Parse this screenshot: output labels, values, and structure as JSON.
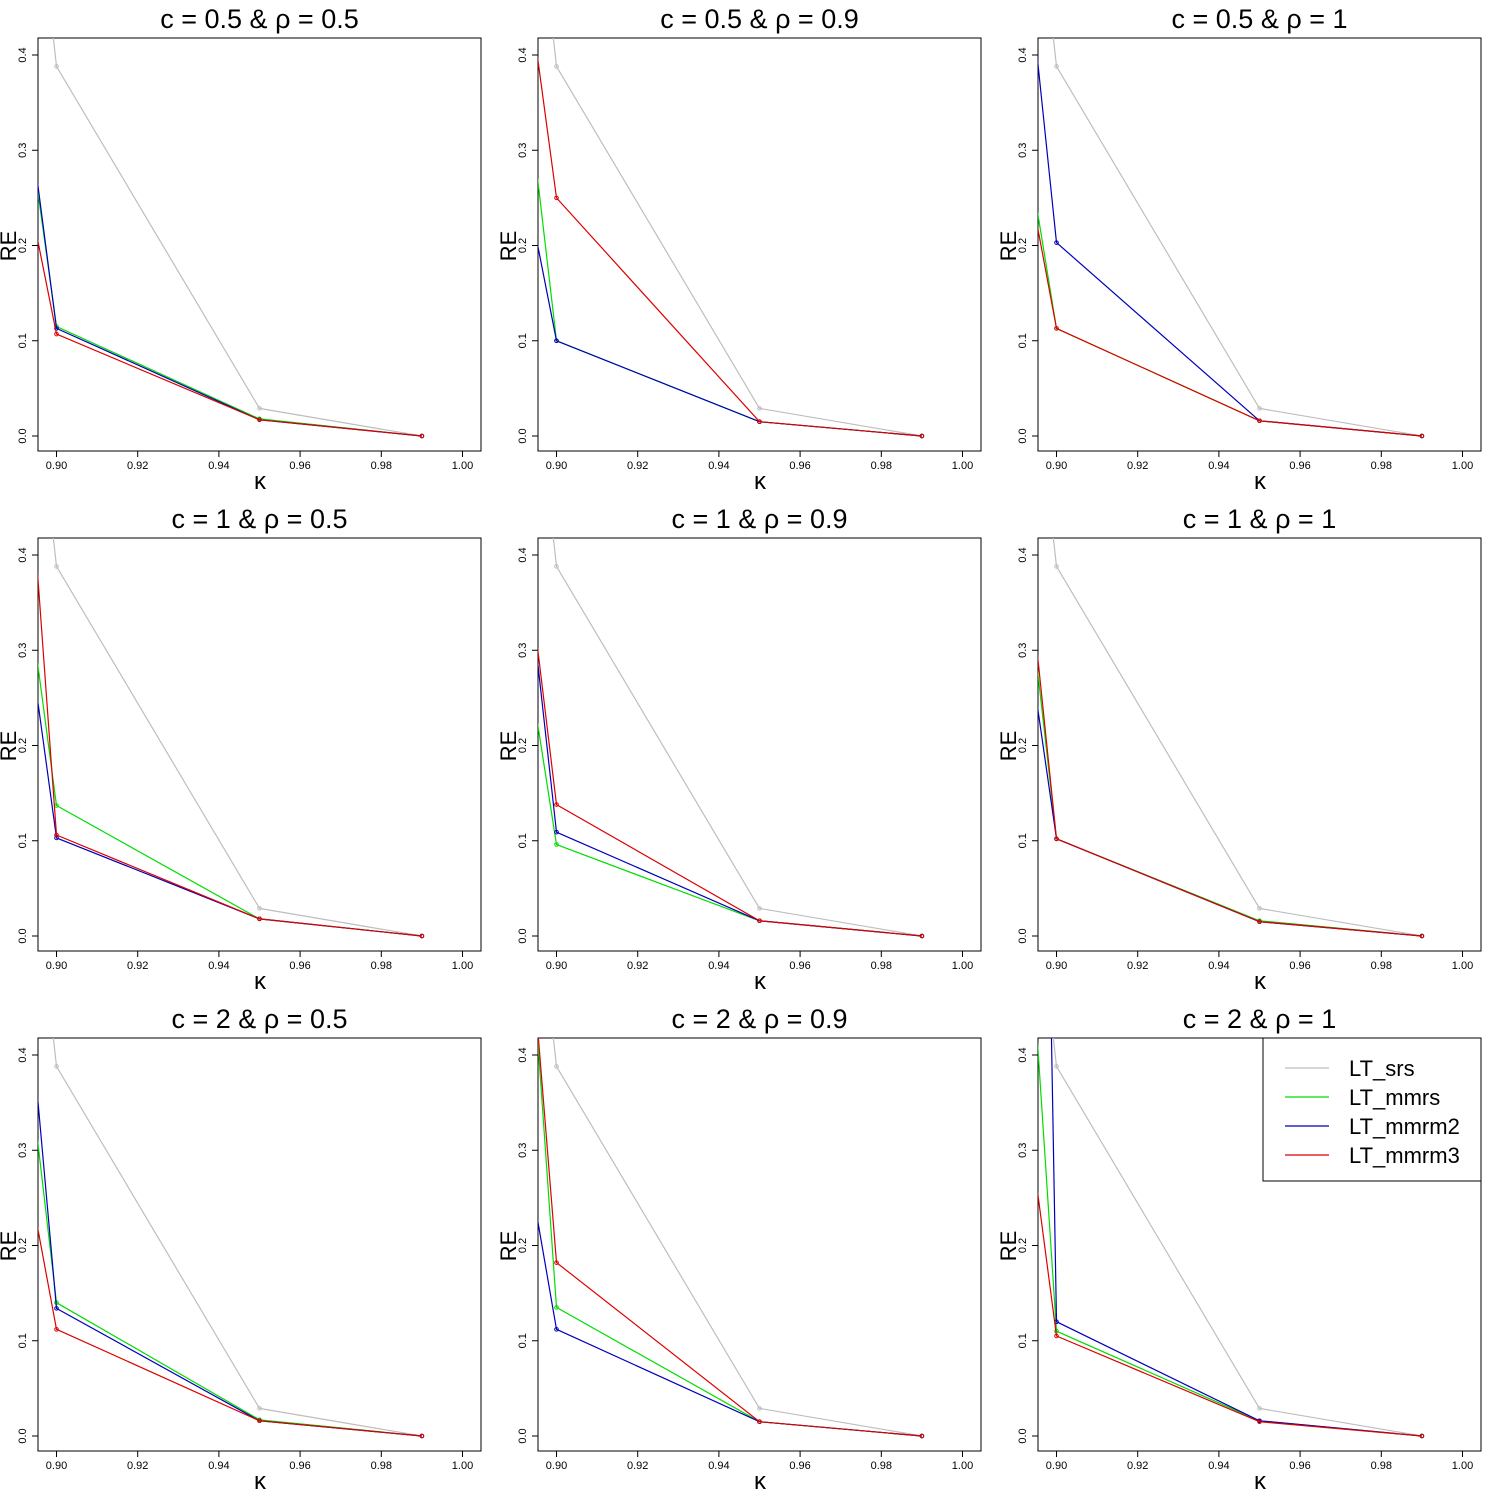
{
  "figure": {
    "legend": {
      "placement": "top-right of last panel",
      "entries": [
        {
          "label": "LT_srs",
          "color": "#bebebe"
        },
        {
          "label": "LT_mmrs",
          "color": "#00dd00"
        },
        {
          "label": "LT_mmrm2",
          "color": "#0000bb"
        },
        {
          "label": "LT_mmrm3",
          "color": "#dd0000"
        }
      ]
    }
  },
  "chart_data": [
    {
      "type": "line",
      "title": "c = 0.5 & ρ = 0.5",
      "xlabel": "κ",
      "ylabel": "RE",
      "xlim": [
        0.895,
        1.0
      ],
      "ylim": [
        -0.01,
        0.42
      ],
      "x_ticks": [
        "0.90",
        "0.92",
        "0.94",
        "0.96",
        "0.98",
        "1.00"
      ],
      "y_ticks": [
        "0.0",
        "0.1",
        "0.2",
        "0.3",
        "0.4"
      ],
      "series": [
        {
          "name": "LT_srs",
          "points": [
            [
              0.894,
              0.62
            ],
            [
              0.9,
              0.388
            ],
            [
              0.95,
              0.029
            ],
            [
              0.99,
              0.0
            ]
          ]
        },
        {
          "name": "LT_mmrs",
          "points": [
            [
              0.894,
              0.3
            ],
            [
              0.9,
              0.115
            ],
            [
              0.95,
              0.018
            ],
            [
              0.99,
              0.0
            ]
          ]
        },
        {
          "name": "LT_mmrm2",
          "points": [
            [
              0.894,
              0.31
            ],
            [
              0.9,
              0.113
            ],
            [
              0.95,
              0.017
            ],
            [
              0.99,
              0.0
            ]
          ]
        },
        {
          "name": "LT_mmrm3",
          "points": [
            [
              0.894,
              0.235
            ],
            [
              0.9,
              0.107
            ],
            [
              0.95,
              0.017
            ],
            [
              0.99,
              0.0
            ]
          ]
        }
      ]
    },
    {
      "type": "line",
      "title": "c = 0.5 & ρ = 0.9",
      "xlabel": "κ",
      "ylabel": "RE",
      "xlim": [
        0.895,
        1.0
      ],
      "ylim": [
        -0.01,
        0.42
      ],
      "x_ticks": [
        "0.90",
        "0.92",
        "0.94",
        "0.96",
        "0.98",
        "1.00"
      ],
      "y_ticks": [
        "0.0",
        "0.1",
        "0.2",
        "0.3",
        "0.4"
      ],
      "series": [
        {
          "name": "LT_srs",
          "points": [
            [
              0.894,
              0.62
            ],
            [
              0.9,
              0.388
            ],
            [
              0.95,
              0.029
            ],
            [
              0.99,
              0.0
            ]
          ]
        },
        {
          "name": "LT_mmrs",
          "points": [
            [
              0.894,
              0.32
            ],
            [
              0.9,
              0.1
            ],
            [
              0.95,
              0.015
            ],
            [
              0.99,
              0.0
            ]
          ]
        },
        {
          "name": "LT_mmrm2",
          "points": [
            [
              0.894,
              0.23
            ],
            [
              0.9,
              0.1
            ],
            [
              0.95,
              0.015
            ],
            [
              0.99,
              0.0
            ]
          ]
        },
        {
          "name": "LT_mmrm3",
          "points": [
            [
              0.894,
              0.44
            ],
            [
              0.9,
              0.25
            ],
            [
              0.95,
              0.015
            ],
            [
              0.99,
              0.0
            ]
          ]
        }
      ]
    },
    {
      "type": "line",
      "title": "c = 0.5 & ρ = 1",
      "xlabel": "κ",
      "ylabel": "RE",
      "xlim": [
        0.895,
        1.0
      ],
      "ylim": [
        -0.01,
        0.42
      ],
      "x_ticks": [
        "0.90",
        "0.92",
        "0.94",
        "0.96",
        "0.98",
        "1.00"
      ],
      "y_ticks": [
        "0.0",
        "0.1",
        "0.2",
        "0.3",
        "0.4"
      ],
      "series": [
        {
          "name": "LT_srs",
          "points": [
            [
              0.894,
              0.62
            ],
            [
              0.9,
              0.388
            ],
            [
              0.95,
              0.029
            ],
            [
              0.99,
              0.0
            ]
          ]
        },
        {
          "name": "LT_mmrs",
          "points": [
            [
              0.894,
              0.27
            ],
            [
              0.9,
              0.113
            ],
            [
              0.95,
              0.016
            ],
            [
              0.99,
              0.0
            ]
          ]
        },
        {
          "name": "LT_mmrm2",
          "points": [
            [
              0.894,
              0.45
            ],
            [
              0.9,
              0.203
            ],
            [
              0.95,
              0.016
            ],
            [
              0.99,
              0.0
            ]
          ]
        },
        {
          "name": "LT_mmrm3",
          "points": [
            [
              0.894,
              0.25
            ],
            [
              0.9,
              0.113
            ],
            [
              0.95,
              0.016
            ],
            [
              0.99,
              0.0
            ]
          ]
        }
      ]
    },
    {
      "type": "line",
      "title": "c = 1 & ρ = 0.5",
      "xlabel": "κ",
      "ylabel": "RE",
      "xlim": [
        0.895,
        1.0
      ],
      "ylim": [
        -0.01,
        0.42
      ],
      "x_ticks": [
        "0.90",
        "0.92",
        "0.94",
        "0.96",
        "0.98",
        "1.00"
      ],
      "y_ticks": [
        "0.0",
        "0.1",
        "0.2",
        "0.3",
        "0.4"
      ],
      "series": [
        {
          "name": "LT_srs",
          "points": [
            [
              0.894,
              0.62
            ],
            [
              0.9,
              0.388
            ],
            [
              0.95,
              0.029
            ],
            [
              0.99,
              0.0
            ]
          ]
        },
        {
          "name": "LT_mmrs",
          "points": [
            [
              0.894,
              0.33
            ],
            [
              0.9,
              0.137
            ],
            [
              0.95,
              0.018
            ],
            [
              0.99,
              0.0
            ]
          ]
        },
        {
          "name": "LT_mmrm2",
          "points": [
            [
              0.894,
              0.29
            ],
            [
              0.9,
              0.103
            ],
            [
              0.95,
              0.018
            ],
            [
              0.99,
              0.0
            ]
          ]
        },
        {
          "name": "LT_mmrm3",
          "points": [
            [
              0.894,
              0.46
            ],
            [
              0.9,
              0.106
            ],
            [
              0.95,
              0.018
            ],
            [
              0.99,
              0.0
            ]
          ]
        }
      ]
    },
    {
      "type": "line",
      "title": "c = 1 & ρ = 0.9",
      "xlabel": "κ",
      "ylabel": "RE",
      "xlim": [
        0.895,
        1.0
      ],
      "ylim": [
        -0.01,
        0.42
      ],
      "x_ticks": [
        "0.90",
        "0.92",
        "0.94",
        "0.96",
        "0.98",
        "1.00"
      ],
      "y_ticks": [
        "0.0",
        "0.1",
        "0.2",
        "0.3",
        "0.4"
      ],
      "series": [
        {
          "name": "LT_srs",
          "points": [
            [
              0.894,
              0.62
            ],
            [
              0.9,
              0.388
            ],
            [
              0.95,
              0.029
            ],
            [
              0.99,
              0.0
            ]
          ]
        },
        {
          "name": "LT_mmrs",
          "points": [
            [
              0.894,
              0.26
            ],
            [
              0.9,
              0.096
            ],
            [
              0.95,
              0.016
            ],
            [
              0.99,
              0.0
            ]
          ]
        },
        {
          "name": "LT_mmrm2",
          "points": [
            [
              0.894,
              0.34
            ],
            [
              0.9,
              0.109
            ],
            [
              0.95,
              0.016
            ],
            [
              0.99,
              0.0
            ]
          ]
        },
        {
          "name": "LT_mmrm3",
          "points": [
            [
              0.894,
              0.35
            ],
            [
              0.9,
              0.138
            ],
            [
              0.95,
              0.016
            ],
            [
              0.99,
              0.0
            ]
          ]
        }
      ]
    },
    {
      "type": "line",
      "title": "c = 1 & ρ = 1",
      "xlabel": "κ",
      "ylabel": "RE",
      "xlim": [
        0.895,
        1.0
      ],
      "ylim": [
        -0.01,
        0.42
      ],
      "x_ticks": [
        "0.90",
        "0.92",
        "0.94",
        "0.96",
        "0.98",
        "1.00"
      ],
      "y_ticks": [
        "0.0",
        "0.1",
        "0.2",
        "0.3",
        "0.4"
      ],
      "series": [
        {
          "name": "LT_srs",
          "points": [
            [
              0.894,
              0.62
            ],
            [
              0.9,
              0.388
            ],
            [
              0.95,
              0.029
            ],
            [
              0.99,
              0.0
            ]
          ]
        },
        {
          "name": "LT_mmrs",
          "points": [
            [
              0.894,
              0.33
            ],
            [
              0.9,
              0.102
            ],
            [
              0.95,
              0.016
            ],
            [
              0.99,
              0.0
            ]
          ]
        },
        {
          "name": "LT_mmrm2",
          "points": [
            [
              0.894,
              0.28
            ],
            [
              0.9,
              0.102
            ],
            [
              0.95,
              0.015
            ],
            [
              0.99,
              0.0
            ]
          ]
        },
        {
          "name": "LT_mmrm3",
          "points": [
            [
              0.894,
              0.35
            ],
            [
              0.9,
              0.102
            ],
            [
              0.95,
              0.015
            ],
            [
              0.99,
              0.0
            ]
          ]
        }
      ]
    },
    {
      "type": "line",
      "title": "c = 2 & ρ = 0.5",
      "xlabel": "κ",
      "ylabel": "RE",
      "xlim": [
        0.895,
        1.0
      ],
      "ylim": [
        -0.01,
        0.42
      ],
      "x_ticks": [
        "0.90",
        "0.92",
        "0.94",
        "0.96",
        "0.98",
        "1.00"
      ],
      "y_ticks": [
        "0.0",
        "0.1",
        "0.2",
        "0.3",
        "0.4"
      ],
      "series": [
        {
          "name": "LT_srs",
          "points": [
            [
              0.894,
              0.62
            ],
            [
              0.9,
              0.388
            ],
            [
              0.95,
              0.029
            ],
            [
              0.99,
              0.0
            ]
          ]
        },
        {
          "name": "LT_mmrs",
          "points": [
            [
              0.894,
              0.36
            ],
            [
              0.9,
              0.14
            ],
            [
              0.95,
              0.017
            ],
            [
              0.99,
              0.0
            ]
          ]
        },
        {
          "name": "LT_mmrm2",
          "points": [
            [
              0.894,
              0.42
            ],
            [
              0.9,
              0.134
            ],
            [
              0.95,
              0.016
            ],
            [
              0.99,
              0.0
            ]
          ]
        },
        {
          "name": "LT_mmrm3",
          "points": [
            [
              0.894,
              0.25
            ],
            [
              0.9,
              0.112
            ],
            [
              0.95,
              0.016
            ],
            [
              0.99,
              0.0
            ]
          ]
        }
      ]
    },
    {
      "type": "line",
      "title": "c = 2 & ρ = 0.9",
      "xlabel": "κ",
      "ylabel": "RE",
      "xlim": [
        0.895,
        1.0
      ],
      "ylim": [
        -0.01,
        0.42
      ],
      "x_ticks": [
        "0.90",
        "0.92",
        "0.94",
        "0.96",
        "0.98",
        "1.00"
      ],
      "y_ticks": [
        "0.0",
        "0.1",
        "0.2",
        "0.3",
        "0.4"
      ],
      "series": [
        {
          "name": "LT_srs",
          "points": [
            [
              0.894,
              0.62
            ],
            [
              0.9,
              0.388
            ],
            [
              0.95,
              0.029
            ],
            [
              0.99,
              0.0
            ]
          ]
        },
        {
          "name": "LT_mmrs",
          "points": [
            [
              0.894,
              0.5
            ],
            [
              0.9,
              0.135
            ],
            [
              0.95,
              0.015
            ],
            [
              0.99,
              0.0
            ]
          ]
        },
        {
          "name": "LT_mmrm2",
          "points": [
            [
              0.894,
              0.26
            ],
            [
              0.9,
              0.112
            ],
            [
              0.95,
              0.015
            ],
            [
              0.99,
              0.0
            ]
          ]
        },
        {
          "name": "LT_mmrm3",
          "points": [
            [
              0.894,
              0.5
            ],
            [
              0.9,
              0.182
            ],
            [
              0.95,
              0.015
            ],
            [
              0.99,
              0.0
            ]
          ]
        }
      ]
    },
    {
      "type": "line",
      "title": "c = 2 & ρ = 1",
      "xlabel": "κ",
      "ylabel": "RE",
      "xlim": [
        0.895,
        1.0
      ],
      "ylim": [
        -0.01,
        0.42
      ],
      "x_ticks": [
        "0.90",
        "0.92",
        "0.94",
        "0.96",
        "0.98",
        "1.00"
      ],
      "y_ticks": [
        "0.0",
        "0.1",
        "0.2",
        "0.3",
        "0.4"
      ],
      "series": [
        {
          "name": "LT_srs",
          "points": [
            [
              0.894,
              0.62
            ],
            [
              0.9,
              0.388
            ],
            [
              0.95,
              0.029
            ],
            [
              0.99,
              0.0
            ]
          ]
        },
        {
          "name": "LT_mmrs",
          "points": [
            [
              0.894,
              0.5
            ],
            [
              0.9,
              0.11
            ],
            [
              0.95,
              0.016
            ],
            [
              0.99,
              0.0
            ]
          ]
        },
        {
          "name": "LT_mmrm2",
          "points": [
            [
              0.898,
              0.6
            ],
            [
              0.9,
              0.12
            ],
            [
              0.95,
              0.016
            ],
            [
              0.99,
              0.0
            ]
          ]
        },
        {
          "name": "LT_mmrm3",
          "points": [
            [
              0.894,
              0.3
            ],
            [
              0.9,
              0.105
            ],
            [
              0.95,
              0.015
            ],
            [
              0.99,
              0.0
            ]
          ]
        }
      ]
    }
  ]
}
